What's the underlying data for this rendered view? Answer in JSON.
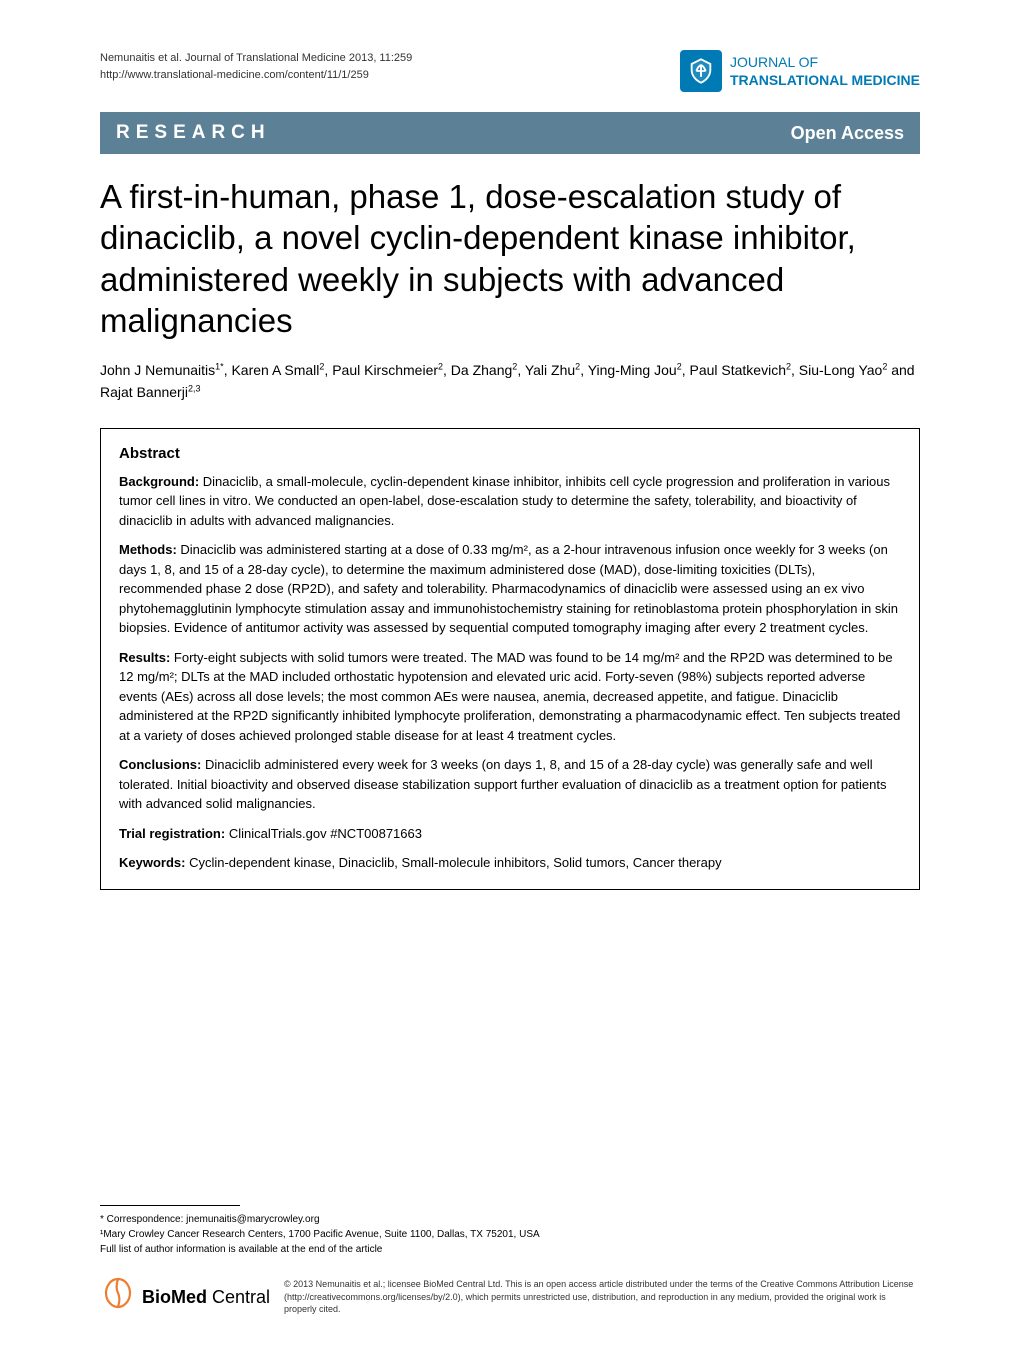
{
  "header": {
    "citation": "Nemunaitis et al. Journal of Translational Medicine 2013, 11:259",
    "url": "http://www.translational-medicine.com/content/11/1/259",
    "journal_line1": "JOURNAL OF",
    "journal_line2": "TRANSLATIONAL MEDICINE"
  },
  "banner": {
    "left": "RESEARCH",
    "right": "Open Access",
    "bg_color": "#5c8196",
    "text_color": "#ffffff"
  },
  "title": "A first-in-human, phase 1, dose-escalation study of dinaciclib, a novel cyclin-dependent kinase inhibitor, administered weekly in subjects with advanced malignancies",
  "authors": {
    "list": [
      {
        "name": "John J Nemunaitis",
        "aff": "1*"
      },
      {
        "name": "Karen A Small",
        "aff": "2"
      },
      {
        "name": "Paul Kirschmeier",
        "aff": "2"
      },
      {
        "name": "Da Zhang",
        "aff": "2"
      },
      {
        "name": "Yali Zhu",
        "aff": "2"
      },
      {
        "name": "Ying-Ming Jou",
        "aff": "2"
      },
      {
        "name": "Paul Statkevich",
        "aff": "2"
      },
      {
        "name": "Siu-Long Yao",
        "aff": "2"
      },
      {
        "name": "Rajat Bannerji",
        "aff": "2,3"
      }
    ],
    "and": " and "
  },
  "abstract": {
    "heading": "Abstract",
    "background": {
      "label": "Background:",
      "text": " Dinaciclib, a small-molecule, cyclin-dependent kinase inhibitor, inhibits cell cycle progression and proliferation in various tumor cell lines in vitro. We conducted an open-label, dose-escalation study to determine the safety, tolerability, and bioactivity of dinaciclib in adults with advanced malignancies."
    },
    "methods": {
      "label": "Methods:",
      "text": " Dinaciclib was administered starting at a dose of 0.33 mg/m², as a 2-hour intravenous infusion once weekly for 3 weeks (on days 1, 8, and 15 of a 28-day cycle), to determine the maximum administered dose (MAD), dose-limiting toxicities (DLTs), recommended phase 2 dose (RP2D), and safety and tolerability. Pharmacodynamics of dinaciclib were assessed using an ex vivo phytohemagglutinin lymphocyte stimulation assay and immunohistochemistry staining for retinoblastoma protein phosphorylation in skin biopsies. Evidence of antitumor activity was assessed by sequential computed tomography imaging after every 2 treatment cycles."
    },
    "results": {
      "label": "Results:",
      "text": " Forty-eight subjects with solid tumors were treated. The MAD was found to be 14 mg/m² and the RP2D was determined to be 12 mg/m²; DLTs at the MAD included orthostatic hypotension and elevated uric acid. Forty-seven (98%) subjects reported adverse events (AEs) across all dose levels; the most common AEs were nausea, anemia, decreased appetite, and fatigue. Dinaciclib administered at the RP2D significantly inhibited lymphocyte proliferation, demonstrating a pharmacodynamic effect. Ten subjects treated at a variety of doses achieved prolonged stable disease for at least 4 treatment cycles."
    },
    "conclusions": {
      "label": "Conclusions:",
      "text": " Dinaciclib administered every week for 3 weeks (on days 1, 8, and 15 of a 28-day cycle) was generally safe and well tolerated. Initial bioactivity and observed disease stabilization support further evaluation of dinaciclib as a treatment option for patients with advanced solid malignancies."
    },
    "trial": {
      "label": "Trial registration:",
      "text": " ClinicalTrials.gov #NCT00871663"
    },
    "keywords": {
      "label": "Keywords:",
      "text": " Cyclin-dependent kinase, Dinaciclib, Small-molecule inhibitors, Solid tumors, Cancer therapy"
    }
  },
  "footer": {
    "correspondence": "* Correspondence: jnemunaitis@marycrowley.org",
    "affiliation": "¹Mary Crowley Cancer Research Centers, 1700 Pacific Avenue, Suite 1100, Dallas, TX 75201, USA",
    "full_list": "Full list of author information is available at the end of the article",
    "biomed_bold": "BioMed",
    "biomed_light": " Central",
    "copyright": "© 2013 Nemunaitis et al.; licensee BioMed Central Ltd. This is an open access article distributed under the terms of the Creative Commons Attribution License (http://creativecommons.org/licenses/by/2.0), which permits unrestricted use, distribution, and reproduction in any medium, provided the original work is properly cited."
  },
  "colors": {
    "accent": "#007ab5",
    "banner_bg": "#5c8196",
    "biomed_orange": "#ed7d31",
    "text": "#000000",
    "bg": "#ffffff"
  }
}
